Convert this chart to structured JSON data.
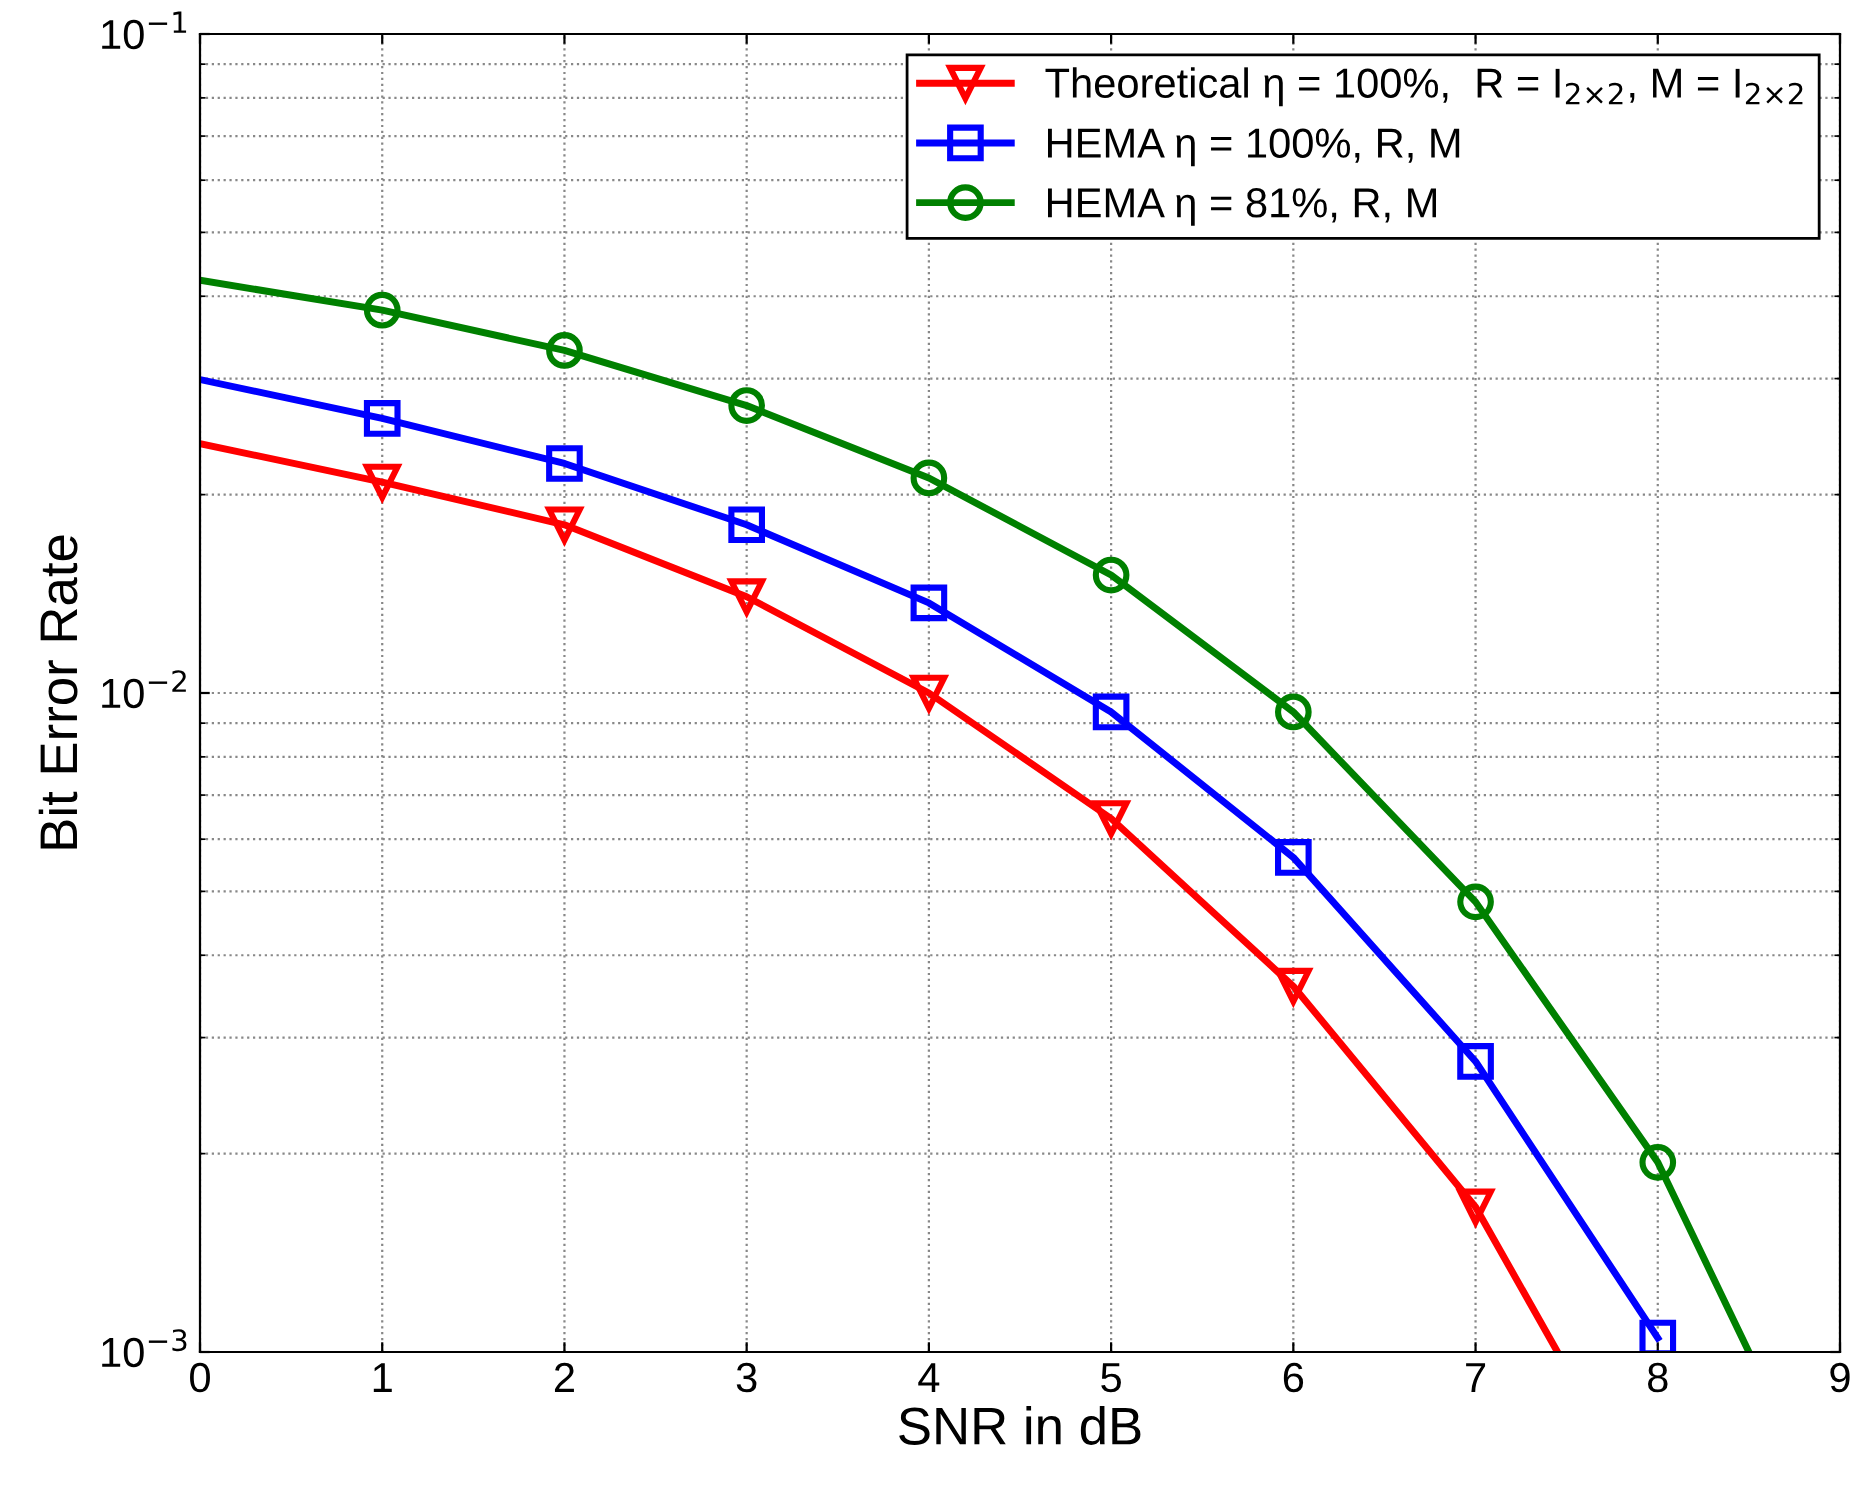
{
  "chart_data": {
    "type": "line",
    "xlabel": "SNR in dB",
    "ylabel": "Bit Error Rate",
    "log": "y",
    "grid": true,
    "legend": "top right",
    "line_style": "solid",
    "xlim": [
      0,
      9
    ],
    "xticks": [
      0,
      1,
      2,
      3,
      4,
      5,
      6,
      7,
      8,
      9
    ],
    "ylim": [
      0.001,
      0.1
    ],
    "yticks": [
      {
        "value": 0.001,
        "label": "10$^{−3}$"
      },
      {
        "value": 0.01,
        "label": "10$^{−2}$"
      },
      {
        "value": 0.1,
        "label": "10$^{−1}$"
      }
    ],
    "series": [
      {
        "name": "Theoretical η = 100%,  R = I$_{2×2}$, M = I$_{2×2}$",
        "color": "#ff0000",
        "marker": "triangle",
        "x": [
          0,
          1,
          2,
          3,
          4,
          5,
          6,
          7,
          7.45
        ],
        "values": [
          0.0239,
          0.0209,
          0.018,
          0.014,
          0.01,
          0.00645,
          0.00359,
          0.00166,
          0.001
        ]
      },
      {
        "name": "HEMA η = 100%, R, M",
        "color": "#0000ff",
        "marker": "square",
        "x": [
          0,
          1,
          2,
          3,
          4,
          5,
          6,
          7,
          8
        ],
        "values": [
          0.0299,
          0.0261,
          0.0223,
          0.018,
          0.0137,
          0.00936,
          0.00563,
          0.00276,
          0.00105
        ]
      },
      {
        "name": "HEMA η = 81%, R, M",
        "color": "#008000",
        "marker": "circle",
        "x": [
          0,
          1,
          2,
          3,
          4,
          5,
          6,
          7,
          8,
          8.5
        ],
        "values": [
          0.0423,
          0.0381,
          0.0331,
          0.0273,
          0.0212,
          0.0151,
          0.00936,
          0.00482,
          0.00194,
          0.001
        ]
      }
    ]
  }
}
